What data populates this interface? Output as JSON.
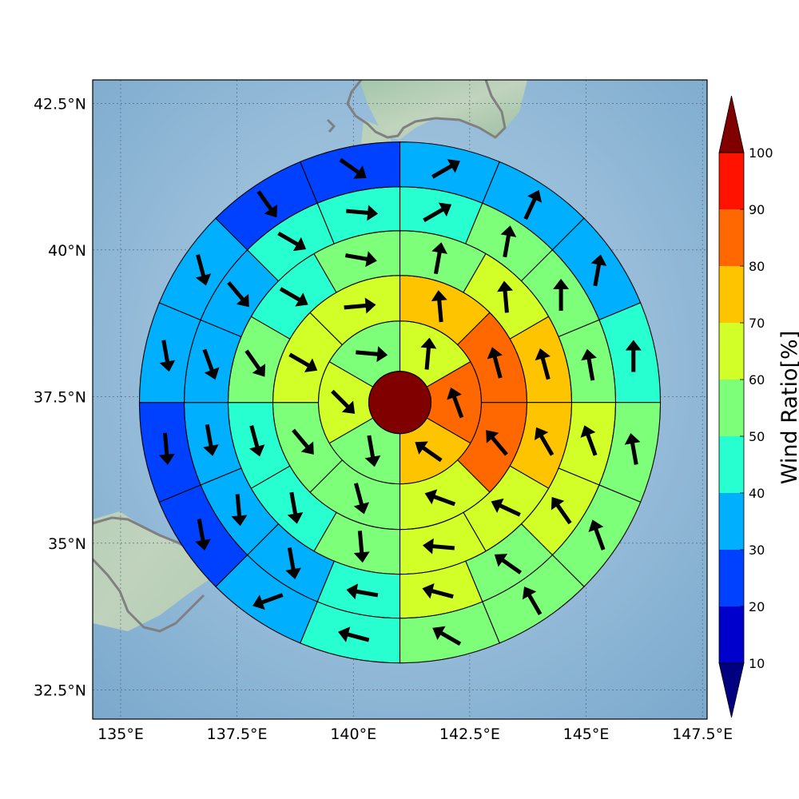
{
  "map": {
    "lat_range": [
      32.0,
      42.9
    ],
    "lon_range": [
      134.4,
      147.6
    ],
    "lat_ticks": [
      {
        "value": 32.5,
        "label": "32.5°N"
      },
      {
        "value": 35.0,
        "label": "35°N"
      },
      {
        "value": 37.5,
        "label": "37.5°N"
      },
      {
        "value": 40.0,
        "label": "40°N"
      },
      {
        "value": 42.5,
        "label": "42.5°N"
      }
    ],
    "lon_ticks": [
      {
        "value": 135.0,
        "label": "135°E"
      },
      {
        "value": 137.5,
        "label": "137.5°E"
      },
      {
        "value": 140.0,
        "label": "140°E"
      },
      {
        "value": 142.5,
        "label": "142.5°E"
      },
      {
        "value": 145.0,
        "label": "145°E"
      },
      {
        "value": 147.5,
        "label": "147.5°E"
      }
    ],
    "grid": true,
    "background": "shaded relief terrain with ocean",
    "coastline_color": "#808080"
  },
  "colorbar": {
    "label": "Wind Ratio[%]",
    "ticks": [
      "10",
      "20",
      "30",
      "40",
      "50",
      "60",
      "70",
      "80",
      "90",
      "100"
    ],
    "levels": [
      10,
      20,
      30,
      40,
      50,
      60,
      70,
      80,
      90,
      100
    ],
    "colors": [
      "#0000cc",
      "#0040ff",
      "#00b0ff",
      "#28ffd0",
      "#7dff7a",
      "#d2ff28",
      "#ffc400",
      "#ff6800",
      "#ff1200"
    ],
    "under_color": "#000080",
    "over_color": "#800000",
    "extend": "both"
  },
  "chart_data": {
    "type": "polar_grid",
    "center": {
      "lat": 37.4,
      "lon": 141.0
    },
    "center_value": "above 100",
    "center_color": "#800000",
    "rings": 5,
    "sectors_per_ring": [
      6,
      8,
      12,
      16,
      16
    ],
    "sectors": [
      {
        "ring": 1,
        "color": "#d2ff28",
        "wind_dir_deg": 5
      },
      {
        "ring": 1,
        "color": "#ff6800",
        "wind_dir_deg": -20
      },
      {
        "ring": 1,
        "color": "#ffc400",
        "wind_dir_deg": -55
      },
      {
        "ring": 1,
        "color": "#7dff7a",
        "wind_dir_deg": 170
      },
      {
        "ring": 1,
        "color": "#d2ff28",
        "wind_dir_deg": 135
      },
      {
        "ring": 1,
        "color": "#7dff7a",
        "wind_dir_deg": 95
      },
      {
        "ring": 2,
        "color": "#ffc400",
        "wind_dir_deg": -5
      },
      {
        "ring": 2,
        "color": "#ff6800",
        "wind_dir_deg": -15
      },
      {
        "ring": 2,
        "color": "#ff6800",
        "wind_dir_deg": -40
      },
      {
        "ring": 2,
        "color": "#d2ff28",
        "wind_dir_deg": -70
      },
      {
        "ring": 2,
        "color": "#7dff7a",
        "wind_dir_deg": 165
      },
      {
        "ring": 2,
        "color": "#7dff7a",
        "wind_dir_deg": 140
      },
      {
        "ring": 2,
        "color": "#d2ff28",
        "wind_dir_deg": 120
      },
      {
        "ring": 2,
        "color": "#d2ff28",
        "wind_dir_deg": 85
      },
      {
        "ring": 3,
        "color": "#7dff7a",
        "wind_dir_deg": 10
      },
      {
        "ring": 3,
        "color": "#d2ff28",
        "wind_dir_deg": -5
      },
      {
        "ring": 3,
        "color": "#ffc400",
        "wind_dir_deg": -15
      },
      {
        "ring": 3,
        "color": "#ffc400",
        "wind_dir_deg": -30
      },
      {
        "ring": 3,
        "color": "#d2ff28",
        "wind_dir_deg": -65
      },
      {
        "ring": 3,
        "color": "#d2ff28",
        "wind_dir_deg": -85
      },
      {
        "ring": 3,
        "color": "#7dff7a",
        "wind_dir_deg": 175
      },
      {
        "ring": 3,
        "color": "#28ffd0",
        "wind_dir_deg": 170
      },
      {
        "ring": 3,
        "color": "#28ffd0",
        "wind_dir_deg": 165
      },
      {
        "ring": 3,
        "color": "#7dff7a",
        "wind_dir_deg": 145
      },
      {
        "ring": 3,
        "color": "#28ffd0",
        "wind_dir_deg": 120
      },
      {
        "ring": 3,
        "color": "#7dff7a",
        "wind_dir_deg": 100
      },
      {
        "ring": 4,
        "color": "#28ffd0",
        "wind_dir_deg": 60
      },
      {
        "ring": 4,
        "color": "#7dff7a",
        "wind_dir_deg": 10
      },
      {
        "ring": 4,
        "color": "#7dff7a",
        "wind_dir_deg": 0
      },
      {
        "ring": 4,
        "color": "#7dff7a",
        "wind_dir_deg": -10
      },
      {
        "ring": 4,
        "color": "#d2ff28",
        "wind_dir_deg": -20
      },
      {
        "ring": 4,
        "color": "#d2ff28",
        "wind_dir_deg": -35
      },
      {
        "ring": 4,
        "color": "#7dff7a",
        "wind_dir_deg": -55
      },
      {
        "ring": 4,
        "color": "#d2ff28",
        "wind_dir_deg": -75
      },
      {
        "ring": 4,
        "color": "#28ffd0",
        "wind_dir_deg": -80
      },
      {
        "ring": 4,
        "color": "#00b0ff",
        "wind_dir_deg": 170
      },
      {
        "ring": 4,
        "color": "#00b0ff",
        "wind_dir_deg": 175
      },
      {
        "ring": 4,
        "color": "#00b0ff",
        "wind_dir_deg": 170
      },
      {
        "ring": 4,
        "color": "#00b0ff",
        "wind_dir_deg": 160
      },
      {
        "ring": 4,
        "color": "#00b0ff",
        "wind_dir_deg": 140
      },
      {
        "ring": 4,
        "color": "#28ffd0",
        "wind_dir_deg": 120
      },
      {
        "ring": 4,
        "color": "#28ffd0",
        "wind_dir_deg": 95
      },
      {
        "ring": 5,
        "color": "#00b0ff",
        "wind_dir_deg": 60
      },
      {
        "ring": 5,
        "color": "#00b0ff",
        "wind_dir_deg": 25
      },
      {
        "ring": 5,
        "color": "#00b0ff",
        "wind_dir_deg": 10
      },
      {
        "ring": 5,
        "color": "#28ffd0",
        "wind_dir_deg": 0
      },
      {
        "ring": 5,
        "color": "#7dff7a",
        "wind_dir_deg": -10
      },
      {
        "ring": 5,
        "color": "#7dff7a",
        "wind_dir_deg": -20
      },
      {
        "ring": 5,
        "color": "#7dff7a",
        "wind_dir_deg": -30
      },
      {
        "ring": 5,
        "color": "#7dff7a",
        "wind_dir_deg": -60
      },
      {
        "ring": 5,
        "color": "#28ffd0",
        "wind_dir_deg": -75
      },
      {
        "ring": 5,
        "color": "#00b0ff",
        "wind_dir_deg": -110
      },
      {
        "ring": 5,
        "color": "#0040ff",
        "wind_dir_deg": 170
      },
      {
        "ring": 5,
        "color": "#0040ff",
        "wind_dir_deg": 175
      },
      {
        "ring": 5,
        "color": "#00b0ff",
        "wind_dir_deg": 170
      },
      {
        "ring": 5,
        "color": "#00b0ff",
        "wind_dir_deg": 165
      },
      {
        "ring": 5,
        "color": "#0040ff",
        "wind_dir_deg": 145
      },
      {
        "ring": 5,
        "color": "#0040ff",
        "wind_dir_deg": 125
      }
    ]
  }
}
